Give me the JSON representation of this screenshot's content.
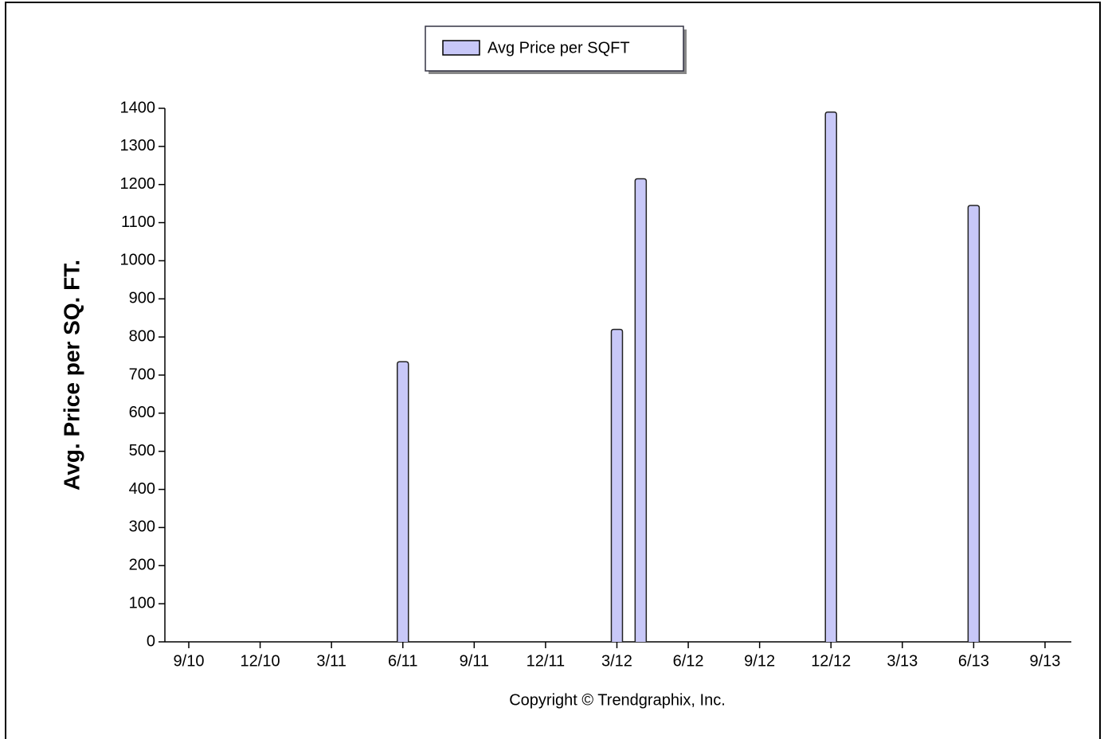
{
  "chart_data": {
    "type": "bar",
    "legend_label": "Avg Price per SQFT",
    "y_label": "Avg. Price per SQ. FT.",
    "footer": "Copyright © Trendgraphix, Inc.",
    "color": "#c8c8f8",
    "categories": [
      "9/10",
      null,
      null,
      "12/10",
      null,
      null,
      "3/11",
      null,
      null,
      "6/11",
      null,
      null,
      "9/11",
      null,
      null,
      "12/11",
      null,
      null,
      "3/12",
      null,
      null,
      "6/12",
      null,
      null,
      "9/12",
      null,
      null,
      "12/12",
      null,
      null,
      "3/13",
      null,
      null,
      "6/13",
      null,
      null,
      "9/13"
    ],
    "values": [
      null,
      null,
      null,
      null,
      null,
      null,
      null,
      null,
      null,
      735,
      null,
      null,
      null,
      null,
      null,
      null,
      null,
      null,
      820,
      1215,
      null,
      null,
      null,
      null,
      null,
      null,
      null,
      1390,
      null,
      null,
      null,
      null,
      null,
      1145,
      null,
      null,
      null
    ],
    "ylim": [
      0,
      1400
    ],
    "yticks": [
      0,
      100,
      200,
      300,
      400,
      500,
      600,
      700,
      800,
      900,
      1000,
      1100,
      1200,
      1300,
      1400
    ]
  }
}
